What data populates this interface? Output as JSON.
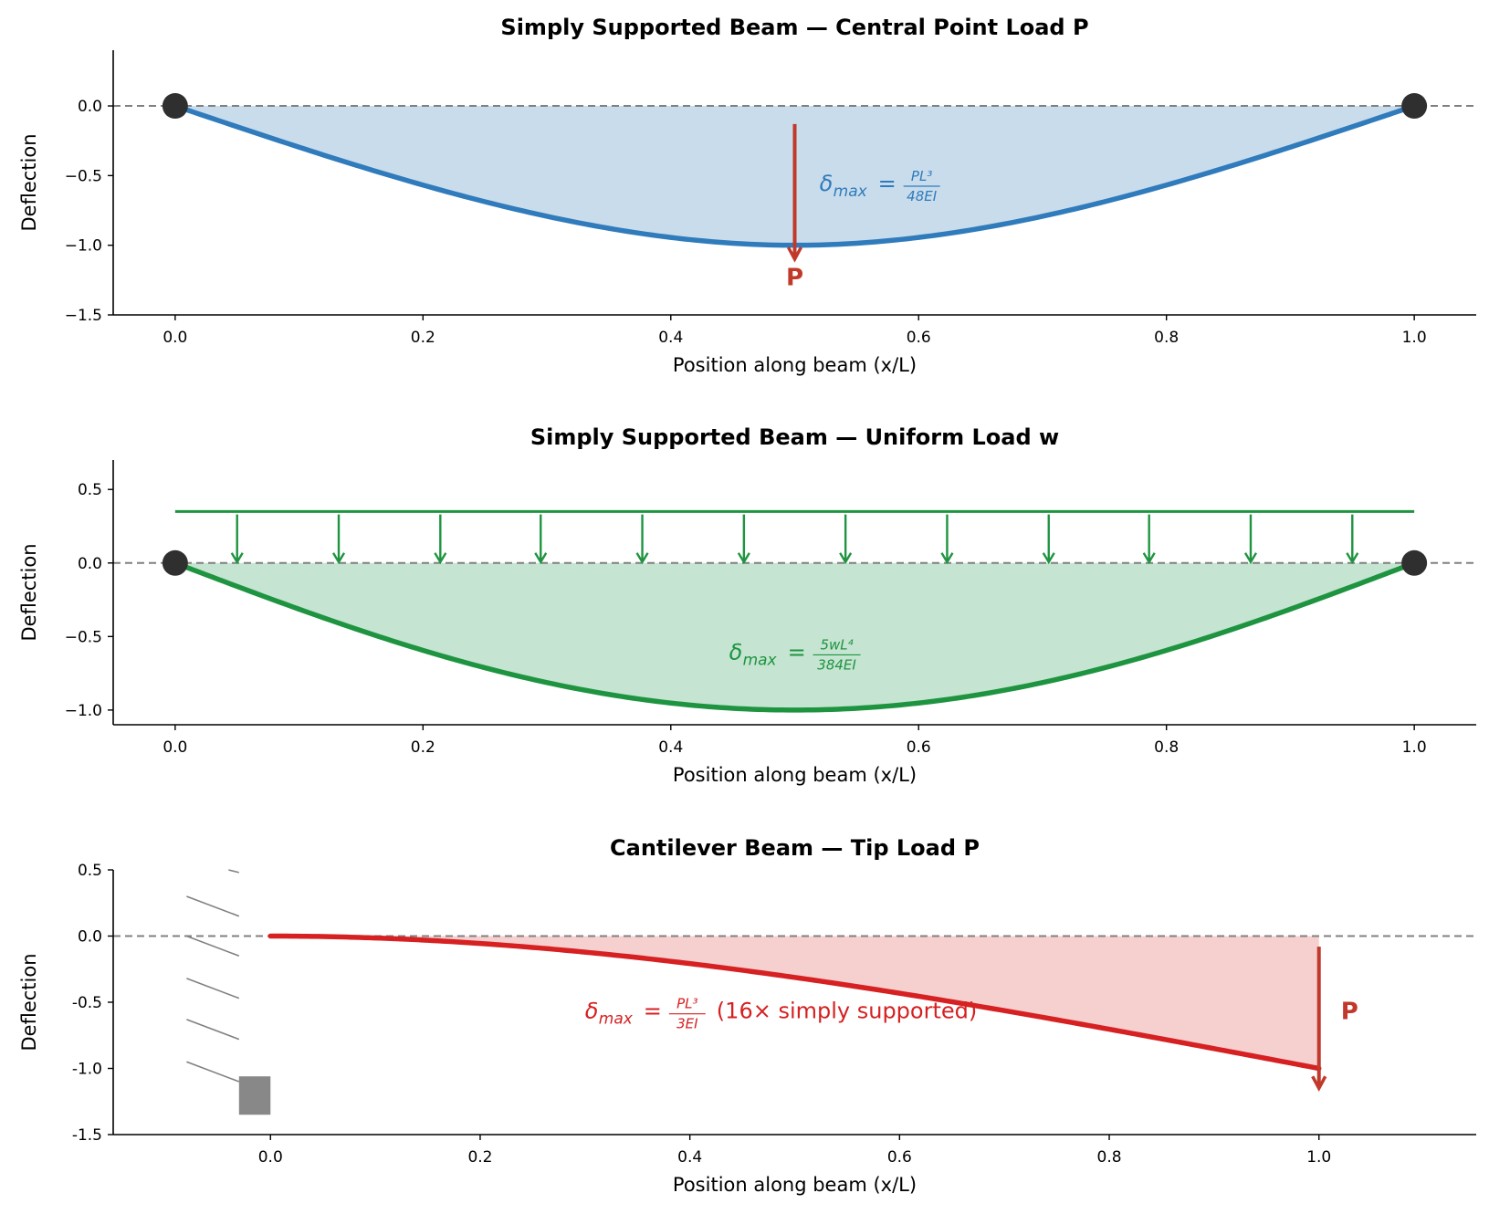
{
  "chart_data": [
    {
      "type": "line",
      "title": "Simply Supported Beam — Central Point Load P",
      "xlabel": "Position along beam  (x/L)",
      "ylabel": "Deflection",
      "xlim": [
        -0.05,
        1.05
      ],
      "ylim": [
        -1.5,
        0.4
      ],
      "xticks": [
        0.0,
        0.2,
        0.4,
        0.6,
        0.8,
        1.0
      ],
      "xtick_labels": [
        "0.0",
        "0.2",
        "0.4",
        "0.6",
        "0.8",
        "1.0"
      ],
      "yticks": [
        0.0,
        -0.5,
        -1.0,
        -1.5
      ],
      "ytick_labels": [
        "0.0",
        "−0.5",
        "−1.0",
        "−1.5"
      ],
      "color": "#2f7bbb",
      "fill_color": "#c9dcec",
      "load_color": "#c0392b",
      "load_type": "point",
      "load_label": "P",
      "load_x": 0.5,
      "curve": "central_point",
      "x": [
        0.0,
        0.05,
        0.1,
        0.15,
        0.2,
        0.25,
        0.3,
        0.35,
        0.4,
        0.45,
        0.5,
        0.55,
        0.6,
        0.65,
        0.7,
        0.75,
        0.8,
        0.85,
        0.9,
        0.95,
        1.0
      ],
      "y": [
        0.0,
        -0.149,
        -0.296,
        -0.437,
        -0.568,
        -0.688,
        -0.792,
        -0.878,
        -0.944,
        -0.985,
        -1.0,
        -0.985,
        -0.944,
        -0.878,
        -0.792,
        -0.688,
        -0.568,
        -0.437,
        -0.296,
        -0.149,
        0.0
      ],
      "supports": [
        0.0,
        1.0
      ],
      "annotation": {
        "symbol": "δ",
        "subscript": "max",
        "equals": "=",
        "numerator": "PL³",
        "denominator": "48EI",
        "suffix": ""
      }
    },
    {
      "type": "line",
      "title": "Simply Supported Beam — Uniform Load w",
      "xlabel": "Position along beam  (x/L)",
      "ylabel": "Deflection",
      "xlim": [
        -0.05,
        1.05
      ],
      "ylim": [
        -1.1,
        0.7
      ],
      "xticks": [
        0.0,
        0.2,
        0.4,
        0.6,
        0.8,
        1.0
      ],
      "xtick_labels": [
        "0.0",
        "0.2",
        "0.4",
        "0.6",
        "0.8",
        "1.0"
      ],
      "yticks": [
        0.5,
        0.0,
        -0.5,
        -1.0
      ],
      "ytick_labels": [
        "0.5",
        "0.0",
        "−0.5",
        "−1.0"
      ],
      "color": "#1e9440",
      "fill_color": "#c5e4d1",
      "load_color": "#1e9440",
      "load_type": "uniform",
      "load_line_y": 0.35,
      "load_arrow_x": [
        0.05,
        0.132,
        0.214,
        0.295,
        0.377,
        0.459,
        0.541,
        0.623,
        0.705,
        0.786,
        0.868,
        0.95
      ],
      "curve": "uniform",
      "x": [
        0.0,
        0.05,
        0.1,
        0.15,
        0.2,
        0.25,
        0.3,
        0.35,
        0.4,
        0.45,
        0.5,
        0.55,
        0.6,
        0.65,
        0.7,
        0.75,
        0.8,
        0.85,
        0.9,
        0.95,
        1.0
      ],
      "y": [
        0.0,
        -0.16,
        -0.315,
        -0.46,
        -0.59,
        -0.703,
        -0.8,
        -0.88,
        -0.94,
        -0.986,
        -1.0,
        -0.986,
        -0.94,
        -0.88,
        -0.8,
        -0.703,
        -0.59,
        -0.46,
        -0.315,
        -0.16,
        0.0
      ],
      "supports": [
        0.0,
        1.0
      ],
      "annotation": {
        "symbol": "δ",
        "subscript": "max",
        "equals": "=",
        "numerator": "5wL⁴",
        "denominator": "384EI",
        "suffix": ""
      }
    },
    {
      "type": "line",
      "title": "Cantilever Beam — Tip Load P",
      "xlabel": "Position along beam  (x/L)",
      "ylabel": "Deflection",
      "xlim": [
        -0.15,
        1.15
      ],
      "ylim": [
        -1.5,
        0.5
      ],
      "xticks": [
        0.0,
        0.2,
        0.4,
        0.6,
        0.8,
        1.0
      ],
      "xtick_labels": [
        "0.0",
        "0.2",
        "0.4",
        "0.6",
        "0.8",
        "1.0"
      ],
      "yticks": [
        0.5,
        0.0,
        -0.5,
        -1.0,
        -1.5
      ],
      "ytick_labels": [
        "0.5",
        "0.0",
        "-0.5",
        "-1.0",
        "-1.5"
      ],
      "color": "#d62021",
      "fill_color": "#f6cfcf",
      "load_color": "#c0392b",
      "load_type": "point",
      "load_label": "P",
      "load_x": 1.0,
      "curve": "cantilever",
      "x": [
        0.0,
        0.05,
        0.1,
        0.15,
        0.2,
        0.25,
        0.3,
        0.35,
        0.4,
        0.45,
        0.5,
        0.55,
        0.6,
        0.65,
        0.7,
        0.75,
        0.8,
        0.85,
        0.9,
        0.95,
        1.0
      ],
      "y": [
        0.0,
        -0.004,
        -0.015,
        -0.032,
        -0.056,
        -0.086,
        -0.122,
        -0.163,
        -0.208,
        -0.258,
        -0.313,
        -0.371,
        -0.432,
        -0.496,
        -0.564,
        -0.633,
        -0.704,
        -0.777,
        -0.851,
        -0.925,
        -1.0
      ],
      "supports": [],
      "annotation": {
        "symbol": "δ",
        "subscript": "max",
        "equals": "=",
        "numerator": "PL³",
        "denominator": "3EI",
        "suffix": "(16× simply supported)"
      }
    }
  ]
}
